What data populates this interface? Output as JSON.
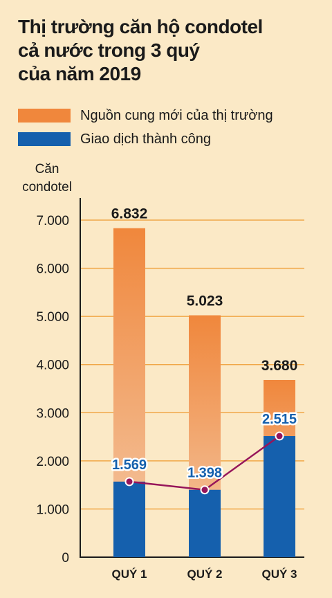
{
  "title_lines": [
    "Thị trường căn hộ condotel",
    "cả nước trong 3 quý",
    "của năm 2019"
  ],
  "colors": {
    "background": "#fbe9c6",
    "supply": "#f0873c",
    "supply_fade": "#f4c9a6",
    "transactions": "#1560ad",
    "line": "#96155a",
    "grid": "#f0a848"
  },
  "chart_data": {
    "type": "bar",
    "categories": [
      "QUÝ 1",
      "QUÝ 2",
      "QUÝ 3"
    ],
    "series": [
      {
        "name": "Nguồn cung mới của thị trường",
        "values": [
          6832,
          5023,
          3680
        ],
        "labels": [
          "6.832",
          "5.023",
          "3.680"
        ]
      },
      {
        "name": "Giao dịch thành công",
        "values": [
          1569,
          1398,
          2515
        ],
        "labels": [
          "1.569",
          "1.398",
          "2.515"
        ]
      }
    ],
    "ylabel_lines": [
      "Căn",
      "condotel"
    ],
    "ylim": [
      0,
      7000
    ],
    "yticks": [
      0,
      1000,
      2000,
      3000,
      4000,
      5000,
      6000,
      7000
    ],
    "ytick_labels": [
      "0",
      "1.000",
      "2.000",
      "3.000",
      "4.000",
      "5.000",
      "6.000",
      "7.000"
    ],
    "grid": true,
    "legend_position": "top"
  }
}
